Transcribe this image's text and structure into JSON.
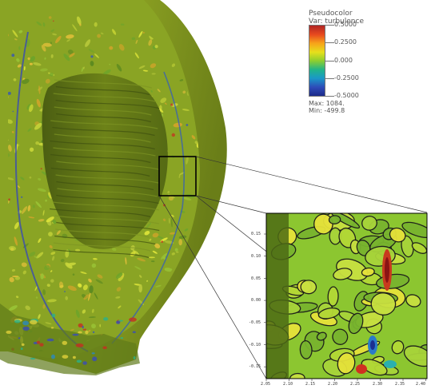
{
  "legend": {
    "title_line1": "Pseudocolor",
    "title_line2": "Var: turbulence",
    "ticks": [
      "0.5000",
      "0.2500",
      "0.000",
      "-0.2500",
      "-0.5000"
    ],
    "max_label": "Max:  1084.",
    "min_label": "Min: -499.8",
    "colors": [
      "#b02424",
      "#e84a1e",
      "#f7a21a",
      "#e6e01c",
      "#8fce2e",
      "#20b48a",
      "#1a98c8",
      "#2e4ab8",
      "#1c2a8a"
    ]
  },
  "inset": {
    "y_ticks": [
      "0.15",
      "0.10",
      "0.05",
      "0.00",
      "-0.05",
      "-0.10",
      "-0.15"
    ],
    "x_ticks": [
      "2.05",
      "2.10",
      "2.15",
      "2.20",
      "2.25",
      "2.30",
      "2.35",
      "2.40"
    ]
  },
  "colors": {
    "surface": "#7a8f1e",
    "surface_dark": "#4e6212",
    "surface_light": "#a2b62e"
  }
}
